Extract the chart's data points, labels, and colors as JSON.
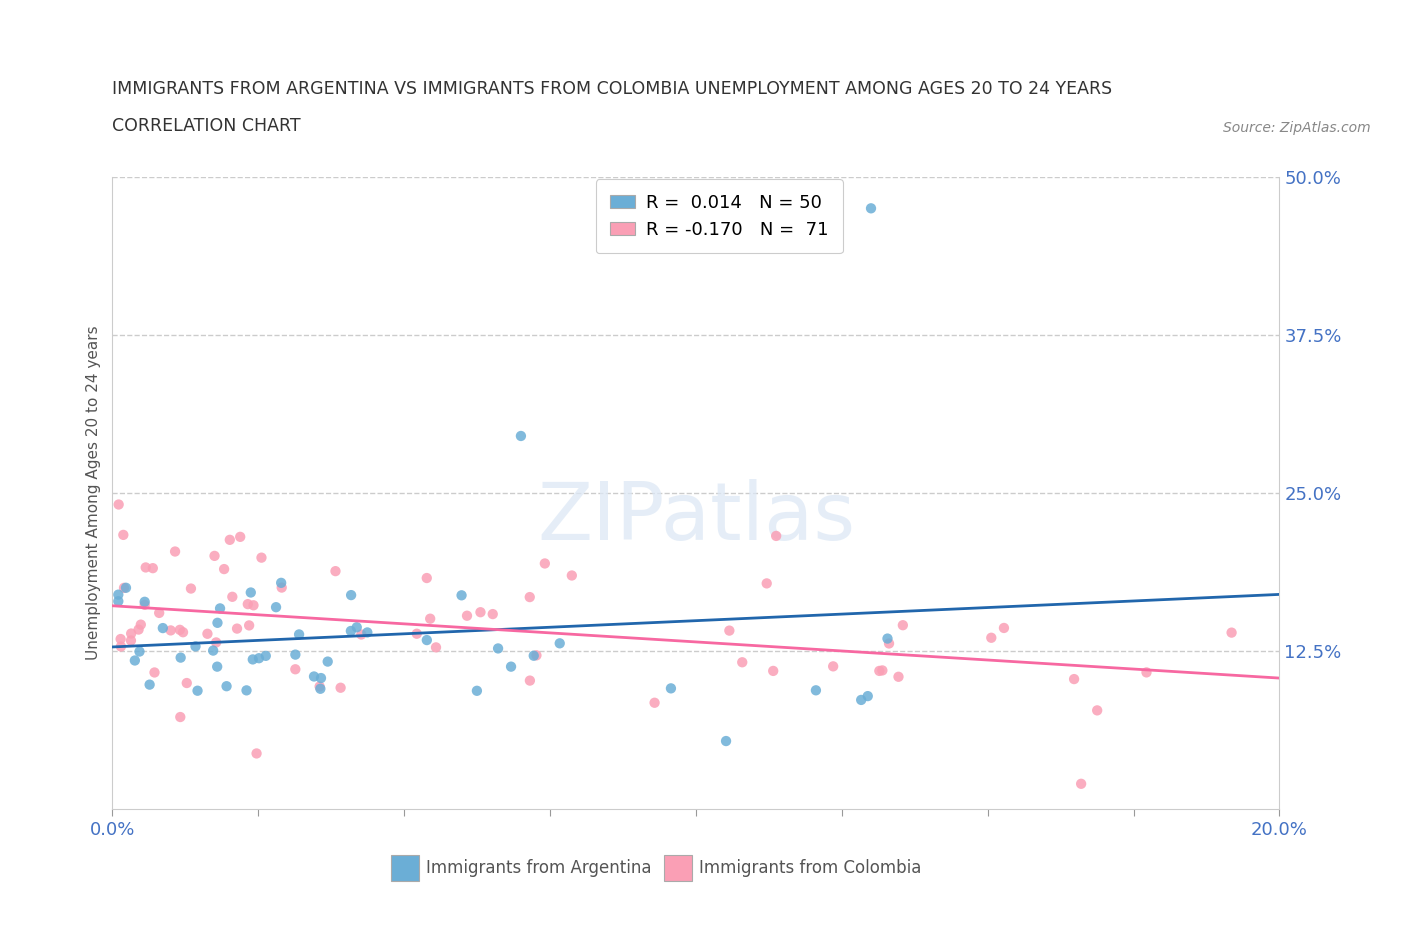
{
  "title": "IMMIGRANTS FROM ARGENTINA VS IMMIGRANTS FROM COLOMBIA UNEMPLOYMENT AMONG AGES 20 TO 24 YEARS",
  "subtitle": "CORRELATION CHART",
  "source": "Source: ZipAtlas.com",
  "ylabel": "Unemployment Among Ages 20 to 24 years",
  "xlim": [
    0.0,
    0.2
  ],
  "ylim": [
    0.0,
    0.5
  ],
  "argentina_color": "#6baed6",
  "colombia_color": "#fa9fb5",
  "argentina_line_color": "#2166ac",
  "colombia_line_color": "#f768a1",
  "argentina_R": 0.014,
  "argentina_N": 50,
  "colombia_R": -0.17,
  "colombia_N": 71,
  "watermark": "ZIPatlas",
  "grid_color": "#cccccc",
  "tick_label_color": "#4472c4",
  "title_color": "#333333",
  "ylabel_color": "#555555",
  "source_color": "#888888"
}
